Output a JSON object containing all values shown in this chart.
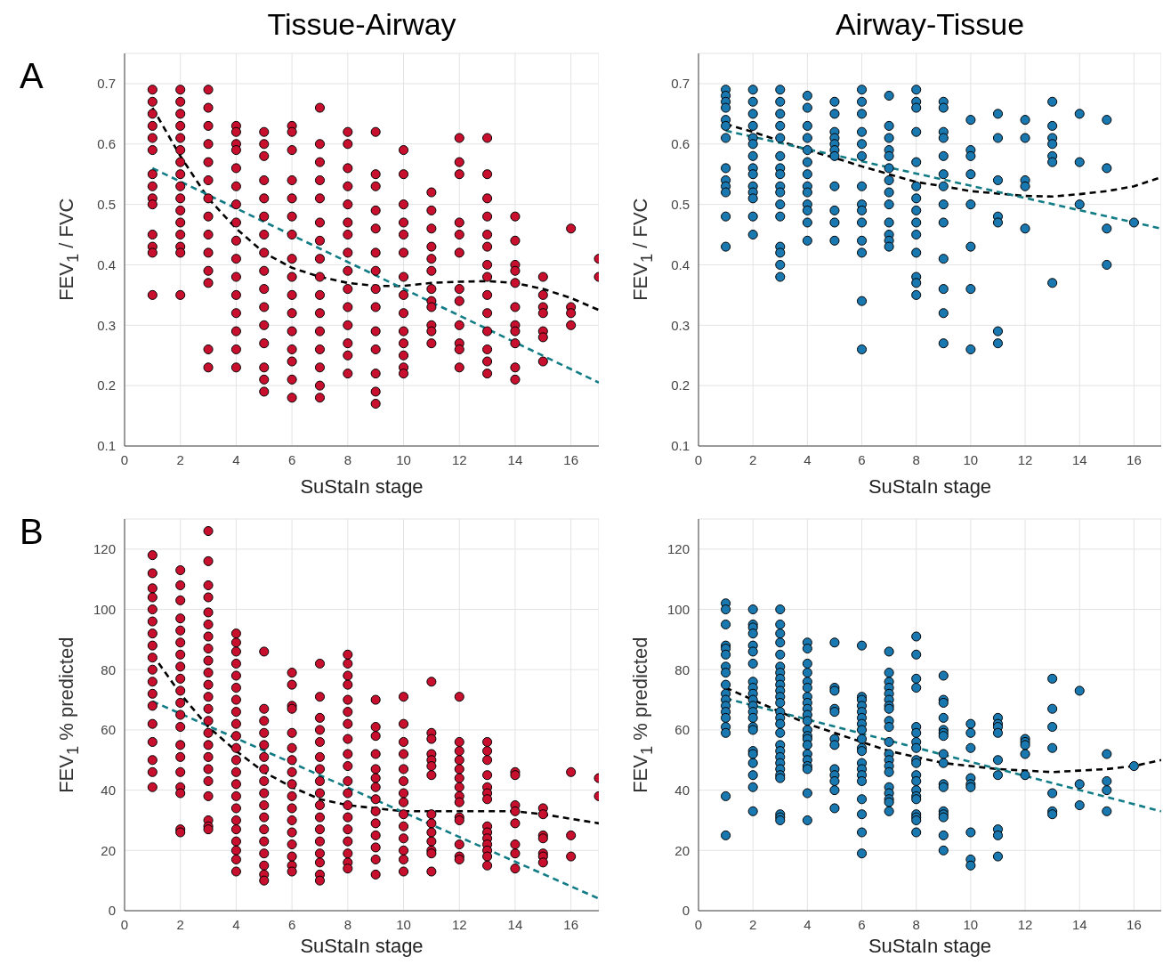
{
  "chart_data": [
    {
      "type": "scatter",
      "title": "Tissue-Airway",
      "xlabel": "SuStaIn stage",
      "ylabel": "FEV$_{1}$ / FVC",
      "annotations": [
        "A"
      ],
      "xlim": [
        0,
        17
      ],
      "xticks": [
        0,
        2,
        4,
        6,
        8,
        10,
        12,
        14,
        16
      ],
      "ylim": [
        0.1,
        0.75
      ],
      "yticks": [
        0.1,
        0.2,
        0.3,
        0.4,
        0.5,
        0.6,
        0.7
      ],
      "grid": true,
      "series": [
        {
          "color": "#c8102e",
          "marker": "circle",
          "x": [
            1,
            1,
            1,
            1,
            1,
            1,
            1,
            1,
            1,
            1,
            1,
            1,
            1,
            1,
            2,
            2,
            2,
            2,
            2,
            2,
            2,
            2,
            2,
            2,
            2,
            2,
            2,
            2,
            2,
            2,
            3,
            3,
            3,
            3,
            3,
            3,
            3,
            3,
            3,
            3,
            3,
            3,
            3,
            3,
            4,
            4,
            4,
            4,
            4,
            4,
            4,
            4,
            4,
            4,
            4,
            4,
            4,
            4,
            4,
            4,
            5,
            5,
            5,
            5,
            5,
            5,
            5,
            5,
            5,
            5,
            5,
            5,
            5,
            5,
            5,
            5,
            6,
            6,
            6,
            6,
            6,
            6,
            6,
            6,
            6,
            6,
            6,
            6,
            6,
            6,
            6,
            6,
            7,
            7,
            7,
            7,
            7,
            7,
            7,
            7,
            7,
            7,
            7,
            7,
            7,
            7,
            7,
            7,
            8,
            8,
            8,
            8,
            8,
            8,
            8,
            8,
            8,
            8,
            8,
            8,
            8,
            8,
            8,
            9,
            9,
            9,
            9,
            9,
            9,
            9,
            9,
            9,
            9,
            9,
            9,
            9,
            9,
            10,
            10,
            10,
            10,
            10,
            10,
            10,
            10,
            10,
            10,
            10,
            10,
            10,
            10,
            11,
            11,
            11,
            11,
            11,
            11,
            11,
            11,
            11,
            11,
            11,
            11,
            12,
            12,
            12,
            12,
            12,
            12,
            12,
            12,
            12,
            12,
            12,
            12,
            13,
            13,
            13,
            13,
            13,
            13,
            13,
            13,
            13,
            13,
            13,
            13,
            13,
            13,
            14,
            14,
            14,
            14,
            14,
            14,
            14,
            14,
            14,
            14,
            14,
            15,
            15,
            15,
            15,
            15,
            15,
            15,
            16,
            16,
            16,
            16,
            17,
            17
          ],
          "values": [
            0.69,
            0.67,
            0.65,
            0.63,
            0.61,
            0.59,
            0.55,
            0.53,
            0.51,
            0.5,
            0.45,
            0.43,
            0.42,
            0.35,
            0.69,
            0.67,
            0.65,
            0.63,
            0.61,
            0.59,
            0.57,
            0.55,
            0.53,
            0.51,
            0.49,
            0.47,
            0.45,
            0.43,
            0.42,
            0.35,
            0.69,
            0.66,
            0.63,
            0.6,
            0.57,
            0.54,
            0.51,
            0.48,
            0.45,
            0.42,
            0.39,
            0.37,
            0.26,
            0.23,
            0.63,
            0.62,
            0.6,
            0.59,
            0.56,
            0.53,
            0.5,
            0.47,
            0.44,
            0.41,
            0.38,
            0.35,
            0.32,
            0.29,
            0.26,
            0.23,
            0.62,
            0.6,
            0.58,
            0.54,
            0.51,
            0.48,
            0.45,
            0.42,
            0.39,
            0.36,
            0.33,
            0.3,
            0.27,
            0.23,
            0.21,
            0.19,
            0.63,
            0.62,
            0.59,
            0.54,
            0.51,
            0.48,
            0.45,
            0.41,
            0.38,
            0.35,
            0.32,
            0.29,
            0.26,
            0.24,
            0.21,
            0.18,
            0.66,
            0.6,
            0.57,
            0.54,
            0.51,
            0.47,
            0.44,
            0.41,
            0.38,
            0.35,
            0.32,
            0.29,
            0.26,
            0.23,
            0.2,
            0.18,
            0.62,
            0.6,
            0.56,
            0.53,
            0.5,
            0.47,
            0.45,
            0.42,
            0.39,
            0.36,
            0.33,
            0.3,
            0.27,
            0.25,
            0.22,
            0.62,
            0.55,
            0.53,
            0.49,
            0.46,
            0.42,
            0.39,
            0.36,
            0.33,
            0.29,
            0.26,
            0.22,
            0.19,
            0.17,
            0.59,
            0.55,
            0.5,
            0.47,
            0.45,
            0.42,
            0.38,
            0.35,
            0.32,
            0.29,
            0.27,
            0.25,
            0.23,
            0.22,
            0.52,
            0.49,
            0.46,
            0.43,
            0.41,
            0.39,
            0.36,
            0.34,
            0.33,
            0.3,
            0.29,
            0.27,
            0.61,
            0.57,
            0.55,
            0.47,
            0.45,
            0.42,
            0.36,
            0.34,
            0.3,
            0.27,
            0.26,
            0.23,
            0.61,
            0.55,
            0.51,
            0.48,
            0.45,
            0.43,
            0.4,
            0.38,
            0.35,
            0.32,
            0.29,
            0.26,
            0.24,
            0.22,
            0.48,
            0.44,
            0.4,
            0.39,
            0.37,
            0.33,
            0.3,
            0.29,
            0.27,
            0.23,
            0.21,
            0.38,
            0.35,
            0.33,
            0.32,
            0.29,
            0.28,
            0.24,
            0.46,
            0.33,
            0.32,
            0.3,
            0.41,
            0.38
          ]
        },
        {
          "type": "line",
          "color": "#000000",
          "marker": "none",
          "line_style": "dashed",
          "x": [
            1,
            2,
            3,
            4,
            5,
            6,
            7,
            8,
            9,
            10,
            11,
            12,
            13,
            14,
            15,
            16,
            17
          ],
          "values": [
            0.66,
            0.58,
            0.51,
            0.46,
            0.42,
            0.395,
            0.38,
            0.37,
            0.365,
            0.365,
            0.37,
            0.372,
            0.373,
            0.37,
            0.36,
            0.345,
            0.325
          ]
        },
        {
          "type": "line",
          "color": "#127c86",
          "marker": "none",
          "line_style": "dashed",
          "x": [
            1,
            17
          ],
          "values": [
            0.56,
            0.205
          ]
        }
      ]
    },
    {
      "type": "scatter",
      "title": "Airway-Tissue",
      "xlabel": "SuStaIn stage",
      "ylabel": "FEV$_{1}$ / FVC",
      "xlim": [
        0,
        17
      ],
      "xticks": [
        0,
        2,
        4,
        6,
        8,
        10,
        12,
        14,
        16
      ],
      "ylim": [
        0.1,
        0.75
      ],
      "yticks": [
        0.1,
        0.2,
        0.3,
        0.4,
        0.5,
        0.6,
        0.7
      ],
      "grid": true,
      "series": [
        {
          "color": "#1a78b0",
          "marker": "circle",
          "x": [
            1,
            1,
            1,
            1,
            1,
            1,
            1,
            1,
            1,
            1,
            1,
            1,
            1,
            2,
            2,
            2,
            2,
            2,
            2,
            2,
            2,
            2,
            2,
            2,
            2,
            2,
            2,
            3,
            3,
            3,
            3,
            3,
            3,
            3,
            3,
            3,
            3,
            3,
            3,
            3,
            3,
            3,
            3,
            4,
            4,
            4,
            4,
            4,
            4,
            4,
            4,
            4,
            4,
            4,
            4,
            4,
            5,
            5,
            5,
            5,
            5,
            5,
            5,
            5,
            5,
            5,
            5,
            6,
            6,
            6,
            6,
            6,
            6,
            6,
            6,
            6,
            6,
            6,
            6,
            6,
            6,
            7,
            7,
            7,
            7,
            7,
            7,
            7,
            7,
            7,
            7,
            7,
            7,
            7,
            8,
            8,
            8,
            8,
            8,
            8,
            8,
            8,
            8,
            8,
            8,
            8,
            8,
            8,
            9,
            9,
            9,
            9,
            9,
            9,
            9,
            9,
            9,
            9,
            9,
            9,
            9,
            10,
            10,
            10,
            10,
            10,
            10,
            10,
            10,
            11,
            11,
            11,
            11,
            11,
            11,
            11,
            12,
            12,
            12,
            12,
            12,
            13,
            13,
            13,
            13,
            13,
            13,
            13,
            14,
            14,
            14,
            15,
            15,
            15,
            15,
            16
          ],
          "values": [
            0.69,
            0.68,
            0.67,
            0.66,
            0.64,
            0.63,
            0.61,
            0.56,
            0.54,
            0.53,
            0.52,
            0.48,
            0.43,
            0.69,
            0.67,
            0.65,
            0.63,
            0.61,
            0.6,
            0.58,
            0.56,
            0.55,
            0.53,
            0.52,
            0.51,
            0.48,
            0.45,
            0.69,
            0.67,
            0.65,
            0.63,
            0.61,
            0.58,
            0.56,
            0.55,
            0.53,
            0.52,
            0.5,
            0.48,
            0.43,
            0.42,
            0.4,
            0.38,
            0.68,
            0.66,
            0.63,
            0.61,
            0.59,
            0.57,
            0.55,
            0.53,
            0.52,
            0.5,
            0.49,
            0.47,
            0.44,
            0.67,
            0.65,
            0.62,
            0.61,
            0.6,
            0.59,
            0.58,
            0.53,
            0.49,
            0.47,
            0.44,
            0.69,
            0.67,
            0.65,
            0.62,
            0.6,
            0.58,
            0.53,
            0.5,
            0.49,
            0.47,
            0.44,
            0.42,
            0.34,
            0.26,
            0.68,
            0.63,
            0.61,
            0.59,
            0.58,
            0.56,
            0.54,
            0.52,
            0.5,
            0.47,
            0.45,
            0.44,
            0.43,
            0.69,
            0.67,
            0.66,
            0.62,
            0.57,
            0.53,
            0.51,
            0.49,
            0.47,
            0.45,
            0.42,
            0.38,
            0.37,
            0.35,
            0.67,
            0.66,
            0.62,
            0.61,
            0.58,
            0.55,
            0.53,
            0.5,
            0.47,
            0.41,
            0.36,
            0.32,
            0.27,
            0.64,
            0.59,
            0.58,
            0.55,
            0.5,
            0.43,
            0.36,
            0.26,
            0.65,
            0.61,
            0.54,
            0.48,
            0.47,
            0.29,
            0.27,
            0.64,
            0.61,
            0.54,
            0.53,
            0.46,
            0.67,
            0.63,
            0.61,
            0.6,
            0.58,
            0.57,
            0.37,
            0.65,
            0.57,
            0.5,
            0.64,
            0.56,
            0.46,
            0.4,
            0.47
          ]
        },
        {
          "type": "line",
          "color": "#000000",
          "marker": "none",
          "line_style": "dashed",
          "x": [
            1,
            2,
            3,
            4,
            5,
            6,
            7,
            8,
            9,
            10,
            11,
            12,
            13,
            14,
            15,
            16,
            17
          ],
          "values": [
            0.633,
            0.62,
            0.605,
            0.59,
            0.577,
            0.563,
            0.55,
            0.537,
            0.53,
            0.522,
            0.518,
            0.514,
            0.513,
            0.517,
            0.522,
            0.53,
            0.545
          ]
        },
        {
          "type": "line",
          "color": "#127c86",
          "marker": "none",
          "line_style": "dashed",
          "x": [
            1,
            17
          ],
          "values": [
            0.622,
            0.46
          ]
        }
      ]
    },
    {
      "type": "scatter",
      "xlabel": "SuStaIn stage",
      "ylabel": "FEV$_{1}$ % predicted",
      "annotations": [
        "B"
      ],
      "xlim": [
        0,
        17
      ],
      "xticks": [
        0,
        2,
        4,
        6,
        8,
        10,
        12,
        14,
        16
      ],
      "ylim": [
        0,
        130
      ],
      "yticks": [
        0,
        20,
        40,
        60,
        80,
        100,
        120
      ],
      "grid": true,
      "series": [
        {
          "color": "#c8102e",
          "marker": "circle",
          "x": [
            1,
            1,
            1,
            1,
            1,
            1,
            1,
            1,
            1,
            1,
            1,
            1,
            1,
            1,
            1,
            1,
            1,
            1,
            2,
            2,
            2,
            2,
            2,
            2,
            2,
            2,
            2,
            2,
            2,
            2,
            2,
            2,
            2,
            2,
            2,
            2,
            2,
            2,
            3,
            3,
            3,
            3,
            3,
            3,
            3,
            3,
            3,
            3,
            3,
            3,
            3,
            3,
            3,
            3,
            3,
            3,
            3,
            3,
            3,
            3,
            3,
            4,
            4,
            4,
            4,
            4,
            4,
            4,
            4,
            4,
            4,
            4,
            4,
            4,
            4,
            4,
            4,
            4,
            4,
            4,
            4,
            4,
            4,
            5,
            5,
            5,
            5,
            5,
            5,
            5,
            5,
            5,
            5,
            5,
            5,
            5,
            5,
            5,
            5,
            5,
            6,
            6,
            6,
            6,
            6,
            6,
            6,
            6,
            6,
            6,
            6,
            6,
            6,
            6,
            6,
            6,
            6,
            7,
            7,
            7,
            7,
            7,
            7,
            7,
            7,
            7,
            7,
            7,
            7,
            7,
            7,
            7,
            7,
            7,
            8,
            8,
            8,
            8,
            8,
            8,
            8,
            8,
            8,
            8,
            8,
            8,
            8,
            8,
            8,
            8,
            8,
            8,
            8,
            9,
            9,
            9,
            9,
            9,
            9,
            9,
            9,
            9,
            9,
            9,
            9,
            9,
            9,
            10,
            10,
            10,
            10,
            10,
            10,
            10,
            10,
            10,
            10,
            10,
            10,
            10,
            10,
            11,
            11,
            11,
            11,
            11,
            11,
            11,
            11,
            11,
            11,
            11,
            11,
            11,
            11,
            12,
            12,
            12,
            12,
            12,
            12,
            12,
            12,
            12,
            12,
            12,
            12,
            12,
            12,
            13,
            13,
            13,
            13,
            13,
            13,
            13,
            13,
            13,
            13,
            13,
            13,
            13,
            13,
            14,
            14,
            14,
            14,
            14,
            14,
            14,
            14,
            15,
            15,
            15,
            15,
            15,
            15,
            15,
            16,
            16,
            16,
            17,
            17
          ],
          "values": [
            118,
            112,
            107,
            104,
            100,
            96,
            92,
            88,
            84,
            80,
            76,
            72,
            68,
            62,
            56,
            50,
            46,
            41,
            113,
            108,
            103,
            97,
            93,
            89,
            85,
            81,
            77,
            73,
            69,
            65,
            61,
            55,
            51,
            46,
            41,
            39,
            27,
            26,
            126,
            116,
            108,
            104,
            99,
            95,
            91,
            87,
            83,
            79,
            75,
            71,
            67,
            63,
            59,
            55,
            51,
            47,
            43,
            38,
            30,
            28,
            27,
            92,
            89,
            86,
            82,
            78,
            74,
            70,
            66,
            62,
            58,
            54,
            50,
            46,
            42,
            38,
            34,
            30,
            27,
            23,
            20,
            17,
            13,
            86,
            67,
            63,
            59,
            55,
            51,
            47,
            43,
            39,
            35,
            31,
            27,
            23,
            19,
            15,
            12,
            10,
            79,
            75,
            68,
            67,
            59,
            54,
            50,
            46,
            42,
            38,
            34,
            30,
            26,
            22,
            18,
            15,
            13,
            82,
            71,
            64,
            60,
            56,
            51,
            47,
            43,
            39,
            35,
            31,
            27,
            23,
            19,
            16,
            12,
            10,
            85,
            82,
            78,
            75,
            70,
            66,
            62,
            57,
            52,
            48,
            43,
            39,
            35,
            31,
            27,
            23,
            19,
            16,
            14,
            70,
            61,
            58,
            52,
            47,
            44,
            41,
            37,
            33,
            29,
            25,
            21,
            17,
            12,
            71,
            62,
            56,
            52,
            47,
            43,
            39,
            36,
            32,
            28,
            24,
            20,
            17,
            13,
            76,
            59,
            57,
            52,
            50,
            48,
            45,
            32,
            29,
            26,
            23,
            20,
            19,
            13,
            71,
            56,
            53,
            50,
            47,
            44,
            41,
            38,
            36,
            31,
            30,
            22,
            18,
            17,
            56,
            53,
            50,
            45,
            41,
            39,
            37,
            28,
            26,
            24,
            22,
            20,
            18,
            15,
            46,
            45,
            35,
            33,
            29,
            22,
            19,
            14,
            34,
            32,
            25,
            24,
            19,
            18,
            16,
            46,
            25,
            18,
            44,
            38
          ]
        },
        {
          "type": "line",
          "color": "#000000",
          "marker": "none",
          "line_style": "dashed",
          "x": [
            1,
            2,
            3,
            4,
            5,
            6,
            7,
            8,
            9,
            10,
            11,
            12,
            13,
            14,
            15,
            16,
            17
          ],
          "values": [
            85,
            72,
            61,
            53,
            46,
            41,
            37,
            35,
            34,
            33,
            33,
            33,
            33,
            33,
            32,
            30.5,
            29
          ]
        },
        {
          "type": "line",
          "color": "#127c86",
          "marker": "none",
          "line_style": "dashed",
          "x": [
            1,
            17
          ],
          "values": [
            69.5,
            4
          ]
        }
      ]
    },
    {
      "type": "scatter",
      "xlabel": "SuStaIn stage",
      "ylabel": "FEV$_{1}$ % predicted",
      "xlim": [
        0,
        17
      ],
      "xticks": [
        0,
        2,
        4,
        6,
        8,
        10,
        12,
        14,
        16
      ],
      "ylim": [
        0,
        130
      ],
      "yticks": [
        0,
        20,
        40,
        60,
        80,
        100,
        120
      ],
      "grid": true,
      "series": [
        {
          "color": "#1a78b0",
          "marker": "circle",
          "x": [
            1,
            1,
            1,
            1,
            1,
            1,
            1,
            1,
            1,
            1,
            1,
            1,
            1,
            1,
            1,
            1,
            1,
            1,
            2,
            2,
            2,
            2,
            2,
            2,
            2,
            2,
            2,
            2,
            2,
            2,
            2,
            2,
            2,
            2,
            2,
            2,
            2,
            2,
            2,
            2,
            3,
            3,
            3,
            3,
            3,
            3,
            3,
            3,
            3,
            3,
            3,
            3,
            3,
            3,
            3,
            3,
            3,
            3,
            3,
            3,
            3,
            3,
            3,
            3,
            3,
            3,
            4,
            4,
            4,
            4,
            4,
            4,
            4,
            4,
            4,
            4,
            4,
            4,
            4,
            4,
            4,
            4,
            4,
            4,
            4,
            4,
            4,
            5,
            5,
            5,
            5,
            5,
            5,
            5,
            5,
            5,
            5,
            5,
            5,
            6,
            6,
            6,
            6,
            6,
            6,
            6,
            6,
            6,
            6,
            6,
            6,
            6,
            6,
            6,
            6,
            6,
            6,
            6,
            7,
            7,
            7,
            7,
            7,
            7,
            7,
            7,
            7,
            7,
            7,
            7,
            7,
            7,
            7,
            7,
            7,
            7,
            7,
            7,
            8,
            8,
            8,
            8,
            8,
            8,
            8,
            8,
            8,
            8,
            8,
            8,
            8,
            8,
            8,
            8,
            8,
            8,
            8,
            9,
            9,
            9,
            9,
            9,
            9,
            9,
            9,
            9,
            9,
            9,
            9,
            9,
            9,
            9,
            9,
            10,
            10,
            10,
            10,
            10,
            10,
            10,
            10,
            10,
            11,
            11,
            11,
            11,
            11,
            11,
            11,
            11,
            11,
            12,
            12,
            12,
            12,
            12,
            13,
            13,
            13,
            13,
            13,
            13,
            13,
            14,
            14,
            14,
            15,
            15,
            15,
            15,
            16
          ],
          "values": [
            102,
            100,
            95,
            88,
            87,
            85,
            81,
            79,
            75,
            72,
            70,
            68,
            66,
            64,
            61,
            59,
            38,
            25,
            100,
            95,
            94,
            92,
            88,
            86,
            82,
            76,
            74,
            72,
            70,
            68,
            66,
            64,
            61,
            60,
            53,
            52,
            49,
            45,
            41,
            33,
            100,
            95,
            92,
            89,
            85,
            81,
            79,
            77,
            75,
            73,
            71,
            69,
            66,
            64,
            62,
            59,
            55,
            53,
            51,
            49,
            47,
            45,
            44,
            32,
            31,
            30,
            89,
            87,
            82,
            79,
            76,
            74,
            71,
            69,
            67,
            65,
            63,
            60,
            58,
            57,
            55,
            52,
            50,
            48,
            47,
            39,
            30,
            89,
            74,
            73,
            67,
            66,
            57,
            55,
            47,
            45,
            43,
            40,
            34,
            88,
            71,
            70,
            68,
            66,
            64,
            62,
            60,
            57,
            54,
            53,
            49,
            47,
            45,
            43,
            37,
            32,
            26,
            19,
            86,
            79,
            76,
            74,
            72,
            70,
            68,
            67,
            63,
            61,
            56,
            52,
            50,
            48,
            46,
            41,
            39,
            37,
            36,
            33,
            91,
            85,
            77,
            74,
            61,
            59,
            56,
            54,
            50,
            49,
            45,
            43,
            40,
            38,
            37,
            32,
            31,
            30,
            26,
            78,
            70,
            69,
            64,
            60,
            59,
            58,
            52,
            49,
            42,
            41,
            33,
            32,
            31,
            25,
            20,
            62,
            59,
            54,
            44,
            42,
            41,
            26,
            17,
            15,
            64,
            62,
            61,
            59,
            50,
            45,
            27,
            25,
            18,
            57,
            56,
            55,
            52,
            45,
            77,
            67,
            61,
            54,
            39,
            33,
            32,
            73,
            42,
            35,
            52,
            43,
            40,
            33,
            48
          ]
        },
        {
          "type": "line",
          "color": "#000000",
          "marker": "none",
          "line_style": "dashed",
          "x": [
            1,
            2,
            3,
            4,
            5,
            6,
            7,
            8,
            9,
            10,
            11,
            12,
            13,
            14,
            15,
            16,
            17
          ],
          "values": [
            74,
            70,
            66,
            62,
            59,
            56,
            53,
            51,
            49,
            48,
            47,
            46.5,
            46,
            46.5,
            47,
            48,
            50
          ]
        },
        {
          "type": "line",
          "color": "#127c86",
          "marker": "none",
          "line_style": "dashed",
          "x": [
            1,
            17
          ],
          "values": [
            70.5,
            33
          ]
        }
      ]
    }
  ]
}
